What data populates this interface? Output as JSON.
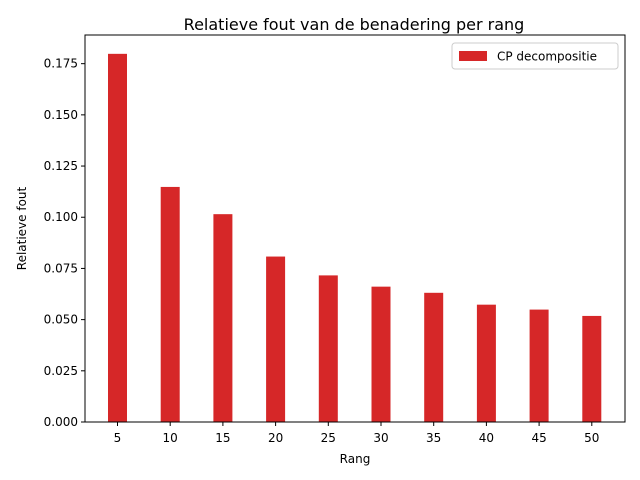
{
  "chart_data": {
    "type": "bar",
    "title": "Relatieve fout van de benadering per rang",
    "xlabel": "Rang",
    "ylabel": "Relatieve fout",
    "categories": [
      "5",
      "10",
      "15",
      "20",
      "25",
      "30",
      "35",
      "40",
      "45",
      "50"
    ],
    "series": [
      {
        "name": "CP decompositie",
        "color": "#d62728",
        "values": [
          0.1798,
          0.1148,
          0.1015,
          0.0808,
          0.0716,
          0.0661,
          0.0631,
          0.0573,
          0.0549,
          0.0518
        ]
      }
    ],
    "ylim": [
      0,
      0.189
    ],
    "yticks": [
      "0.000",
      "0.025",
      "0.050",
      "0.075",
      "0.100",
      "0.125",
      "0.150",
      "0.175"
    ],
    "legend_position": "top-right",
    "grid": false
  }
}
